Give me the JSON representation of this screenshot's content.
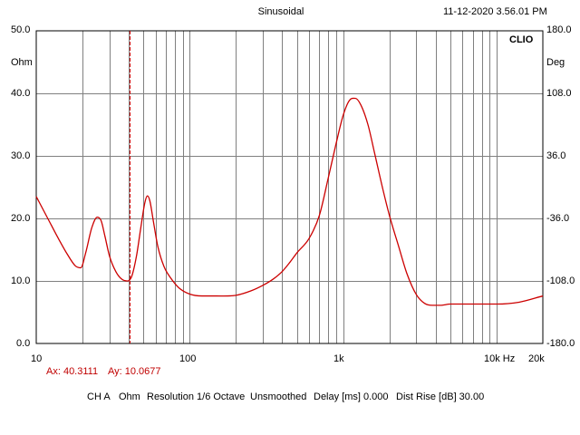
{
  "header": {
    "title": "Sinusoidal",
    "timestamp": "11-12-2020 3.56.01 PM",
    "brand": "CLIO"
  },
  "cursor": {
    "ax_label": "Ax: 40.3111",
    "ay_label": "Ay: 10.0677"
  },
  "footer": {
    "channel": "CH A",
    "unit": "Ohm",
    "resolution": "Resolution 1/6 Octave",
    "smoothing": "Unsmoothed",
    "delay": "Delay [ms] 0.000",
    "dist_rise": "Dist Rise [dB] 30.00"
  },
  "colors": {
    "trace": "#cc0000",
    "grid": "#808080",
    "cursor": "#cc0000"
  },
  "chart_data": {
    "type": "line",
    "x_scale": "log",
    "xlim": [
      10,
      20000
    ],
    "ylim": [
      0,
      50
    ],
    "y2lim": [
      -180,
      180
    ],
    "ylabel": "Ohm",
    "y2label": "Deg",
    "x_tick_labels": [
      {
        "value": 10,
        "label": "10"
      },
      {
        "value": 100,
        "label": "100"
      },
      {
        "value": 1000,
        "label": "1k"
      },
      {
        "value": 10000,
        "label": "10k Hz"
      },
      {
        "value": 20000,
        "label": "20k"
      }
    ],
    "y_tick_labels": [
      "0.0",
      "10.0",
      "20.0",
      "30.0",
      "40.0",
      "50.0"
    ],
    "y2_tick_labels": [
      "-180.0",
      "-108.0",
      "-36.0",
      "36.0",
      "108.0",
      "180.0"
    ],
    "grid": true,
    "cursor_x": 40.3111,
    "series": [
      {
        "x": [
          10,
          12,
          14,
          16,
          18,
          19.5,
          21,
          23,
          25,
          26.5,
          28,
          30,
          33,
          36,
          39,
          40.3,
          42,
          45,
          48,
          51,
          53,
          55,
          58,
          62,
          68,
          75,
          85,
          100,
          120,
          150,
          200,
          250,
          300,
          350,
          400,
          450,
          500,
          600,
          700,
          800,
          900,
          1000,
          1100,
          1200,
          1300,
          1450,
          1600,
          1800,
          2000,
          2300,
          2600,
          3000,
          3400,
          3800,
          4300,
          5000,
          6000,
          8000,
          10000,
          14000,
          20000
        ],
        "y": [
          23.5,
          19.8,
          16.7,
          14.2,
          12.4,
          12.1,
          14.5,
          18.5,
          20.2,
          19.6,
          17.2,
          14.0,
          11.5,
          10.3,
          10.0,
          10.07,
          10.8,
          14.0,
          18.5,
          22.5,
          23.6,
          22.8,
          19.5,
          15.5,
          12.3,
          10.5,
          8.9,
          7.9,
          7.6,
          7.6,
          7.7,
          8.4,
          9.3,
          10.3,
          11.5,
          13.0,
          14.5,
          16.8,
          20.5,
          26.5,
          32.0,
          36.5,
          38.9,
          39.2,
          38.2,
          35.0,
          30.5,
          25.0,
          20.5,
          15.5,
          11.2,
          7.8,
          6.4,
          6.1,
          6.1,
          6.3,
          6.3,
          6.3,
          6.3,
          6.6,
          7.6
        ]
      }
    ]
  }
}
